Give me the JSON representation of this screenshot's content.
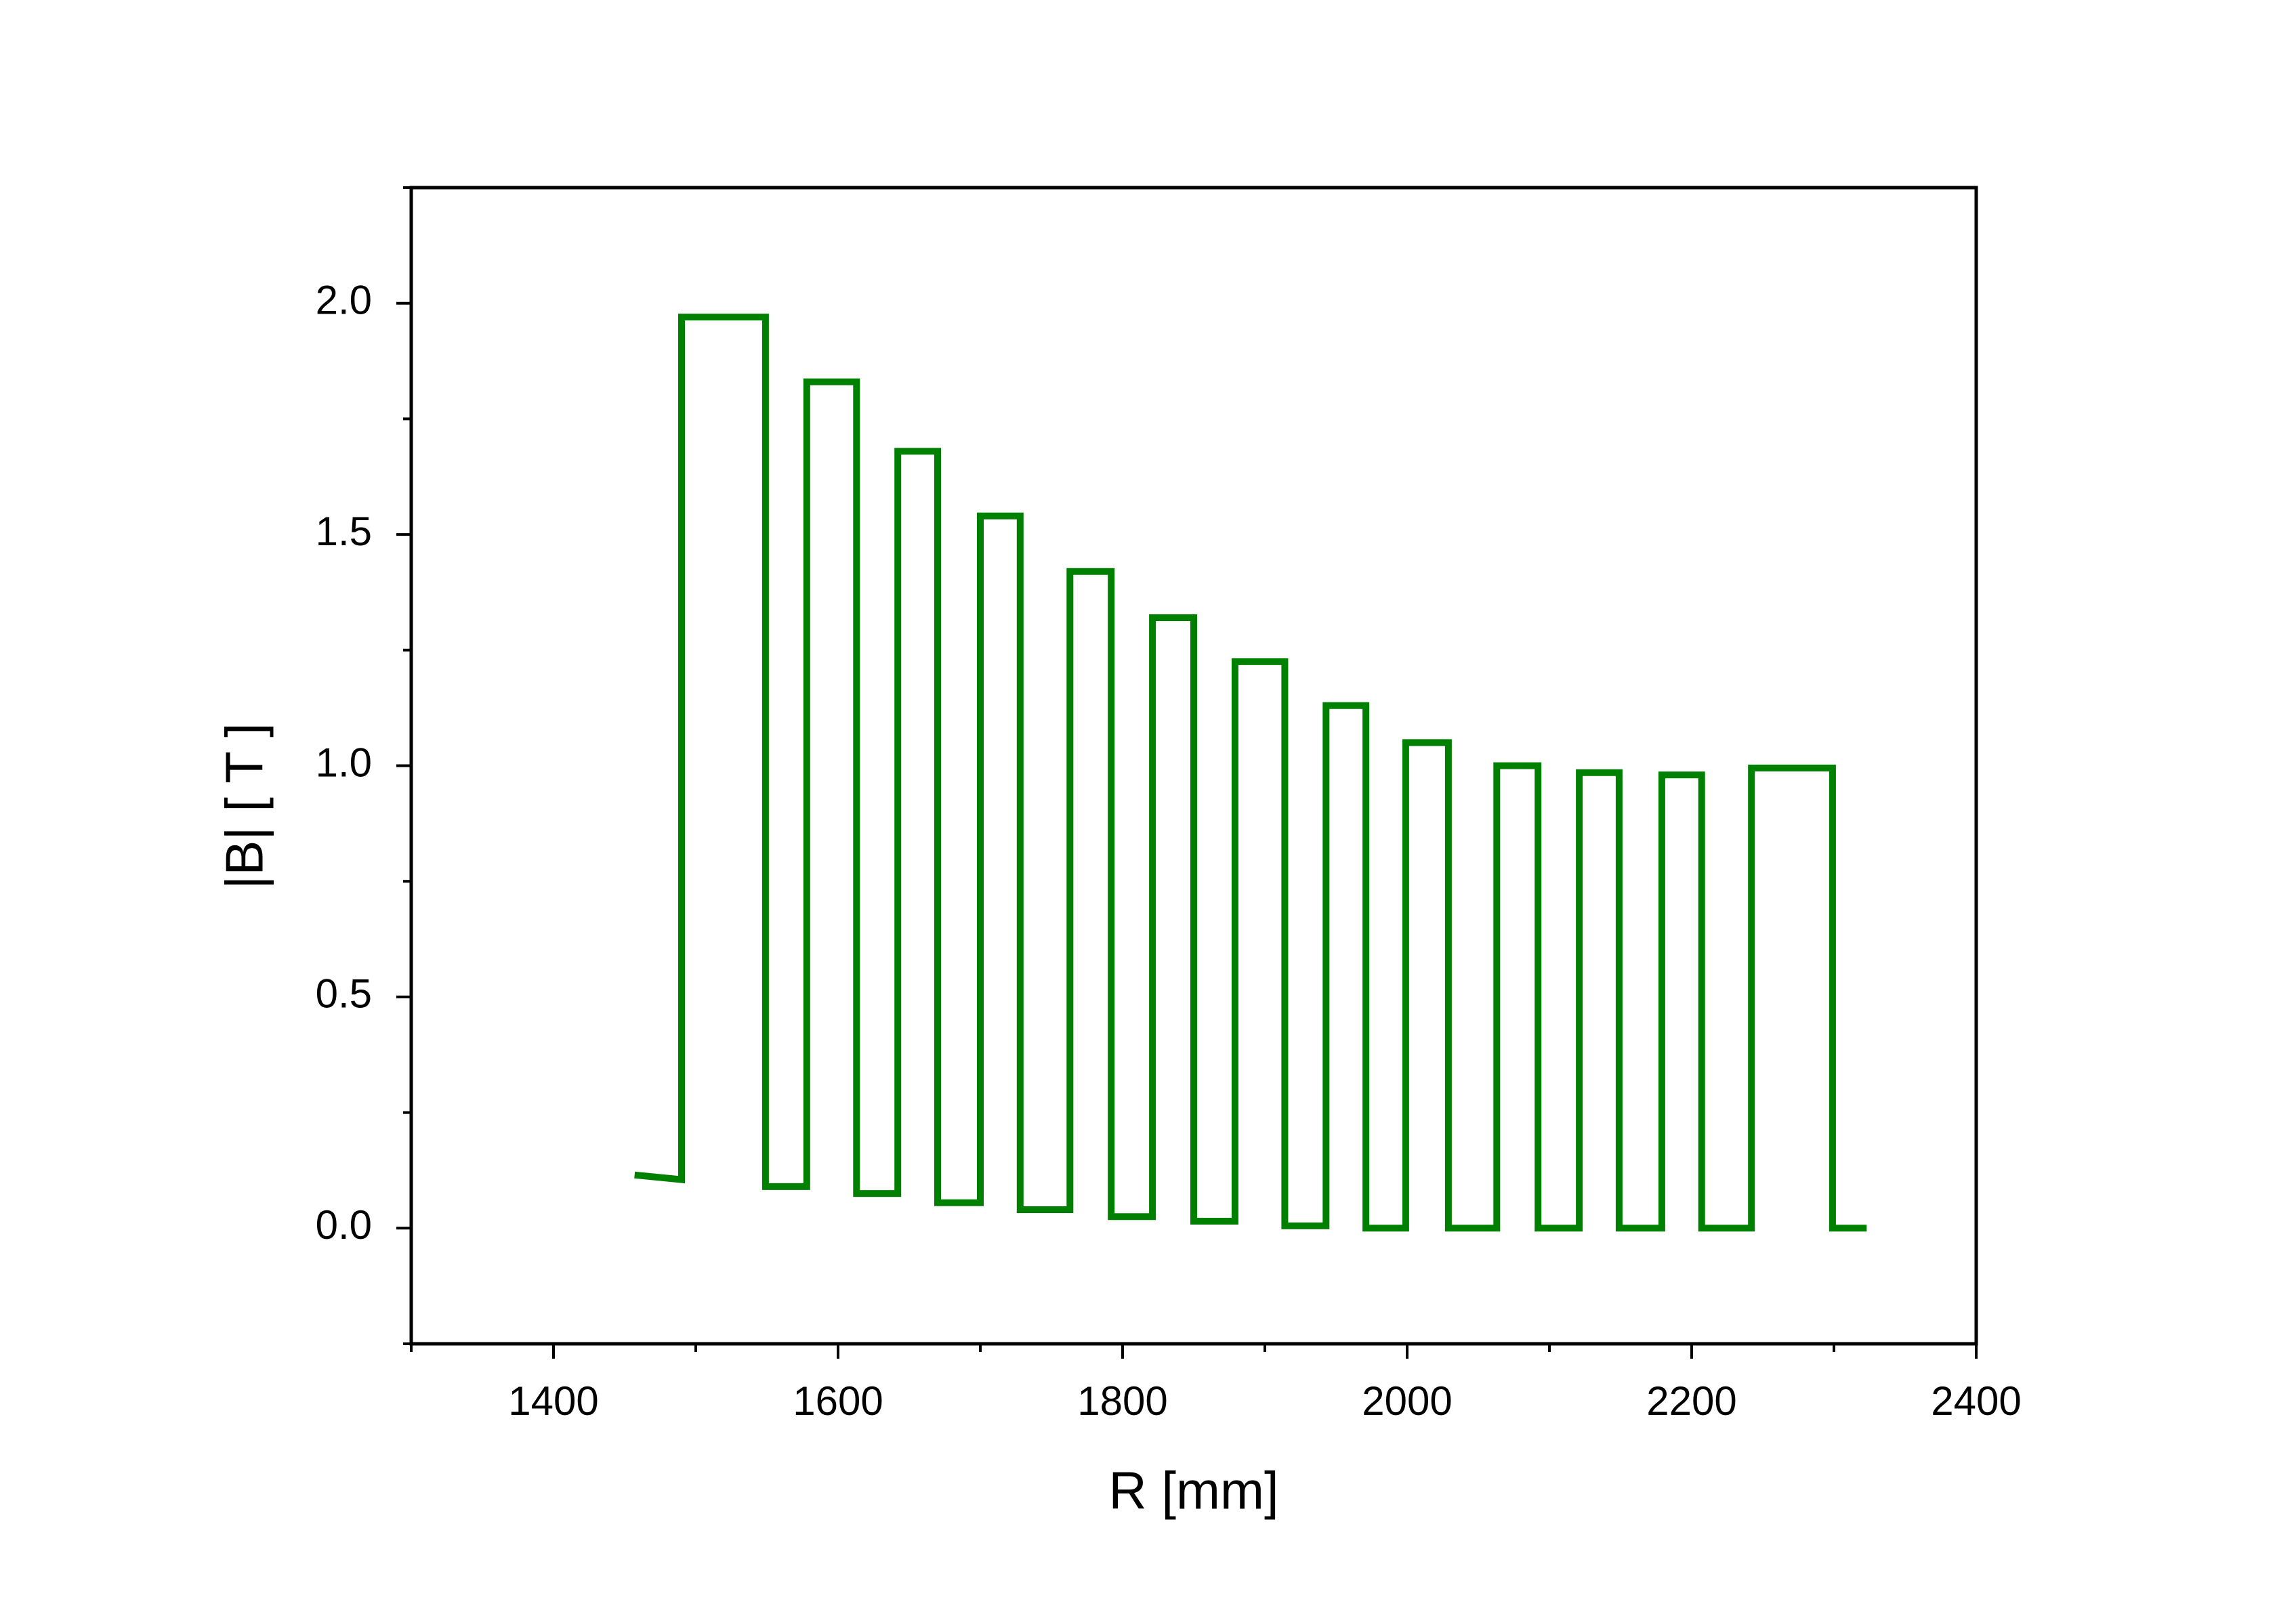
{
  "chart_data": {
    "type": "line",
    "x_label": "R [mm]",
    "y_label": "|B|  [ T ]",
    "xlim": [
      1300,
      2400
    ],
    "ylim": [
      -0.25,
      2.25
    ],
    "xticks": [
      1400,
      1600,
      1800,
      2000,
      2200,
      2400
    ],
    "yticks": [
      {
        "value": 0,
        "label": "0.0"
      },
      0.5,
      {
        "value": 1,
        "label": "1.0"
      },
      1.5,
      {
        "value": 2,
        "label": "2.0"
      }
    ],
    "xminorticks": [
      1300,
      1500,
      1700,
      1900,
      2100,
      2300
    ],
    "yminorticks": [
      -0.25,
      0.25,
      0.75,
      1.25,
      1.75,
      2.25
    ],
    "grid": false,
    "series": [
      {
        "color": "#008000",
        "x": [
          1457,
          1490,
          1490,
          1549,
          1549,
          1578,
          1578,
          1613,
          1613,
          1642,
          1642,
          1670,
          1670,
          1700,
          1700,
          1728,
          1728,
          1763,
          1763,
          1792,
          1792,
          1821,
          1821,
          1850,
          1850,
          1879,
          1879,
          1914,
          1914,
          1943,
          1943,
          1971,
          1971,
          1999,
          1999,
          2029,
          2029,
          2063,
          2063,
          2092,
          2092,
          2121,
          2121,
          2149,
          2149,
          2179,
          2179,
          2207,
          2207,
          2242,
          2242,
          2299,
          2299,
          2323
        ],
        "values": [
          0.115,
          0.105,
          1.97,
          1.97,
          0.09,
          0.09,
          1.83,
          1.83,
          0.075,
          0.075,
          1.68,
          1.68,
          0.055,
          0.055,
          1.54,
          1.54,
          0.04,
          0.04,
          1.42,
          1.42,
          0.025,
          0.025,
          1.32,
          1.32,
          0.015,
          0.015,
          1.225,
          1.225,
          0.005,
          0.005,
          1.13,
          1.13,
          0,
          0,
          1.05,
          1.05,
          0,
          0,
          1.0,
          1.0,
          0,
          0,
          0.985,
          0.985,
          0,
          0,
          0.98,
          0.98,
          0,
          0,
          0.995,
          0.995,
          0,
          0
        ]
      }
    ]
  }
}
